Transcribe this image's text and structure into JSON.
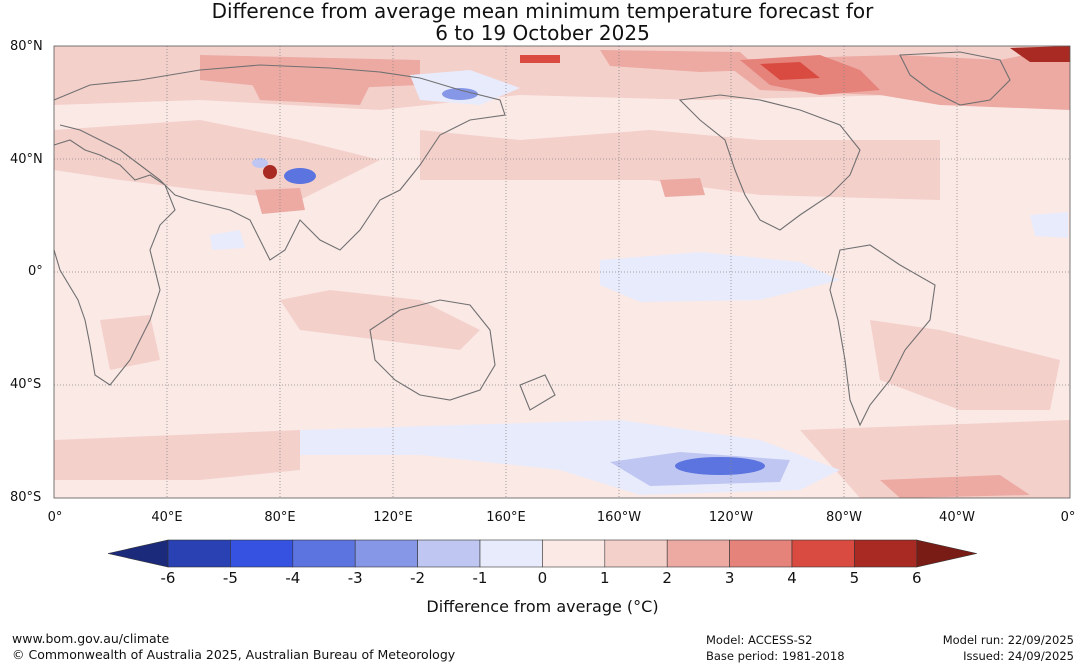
{
  "title": {
    "line1": "Difference from average mean minimum temperature forecast for",
    "line2": "6 to 19 October 2025"
  },
  "map": {
    "lat_labels": [
      "80°N",
      "40°N",
      "0°",
      "40°S",
      "80°S"
    ],
    "lon_labels": [
      "0°",
      "40°E",
      "80°E",
      "120°E",
      "160°E",
      "160°W",
      "120°W",
      "80°W",
      "40°W",
      "0°"
    ],
    "ocean_color": "#fbe9e6",
    "land_outline_color": "#707070",
    "graticule_color": "#888888"
  },
  "colorbar": {
    "ticks": [
      "-6",
      "-5",
      "-4",
      "-3",
      "-2",
      "-1",
      "0",
      "1",
      "2",
      "3",
      "4",
      "5",
      "6"
    ],
    "colors": [
      "#1c2a7c",
      "#2a41b3",
      "#3553e0",
      "#5c74e0",
      "#8797e8",
      "#bfc6f2",
      "#e8ebfb",
      "#fbe9e6",
      "#f4d0cb",
      "#ecaaa3",
      "#e5837b",
      "#d94b40",
      "#a82a22",
      "#7a1c16"
    ],
    "label": "Difference from average (°C)"
  },
  "footer": {
    "website": "www.bom.gov.au/climate",
    "copyright": "© Commonwealth of Australia 2025, Australian Bureau of Meteorology",
    "model": "Model: ACCESS-S2",
    "base_period": "Base period: 1981-2018",
    "model_run": "Model run: 22/09/2025",
    "issued": "Issued: 24/09/2025"
  }
}
